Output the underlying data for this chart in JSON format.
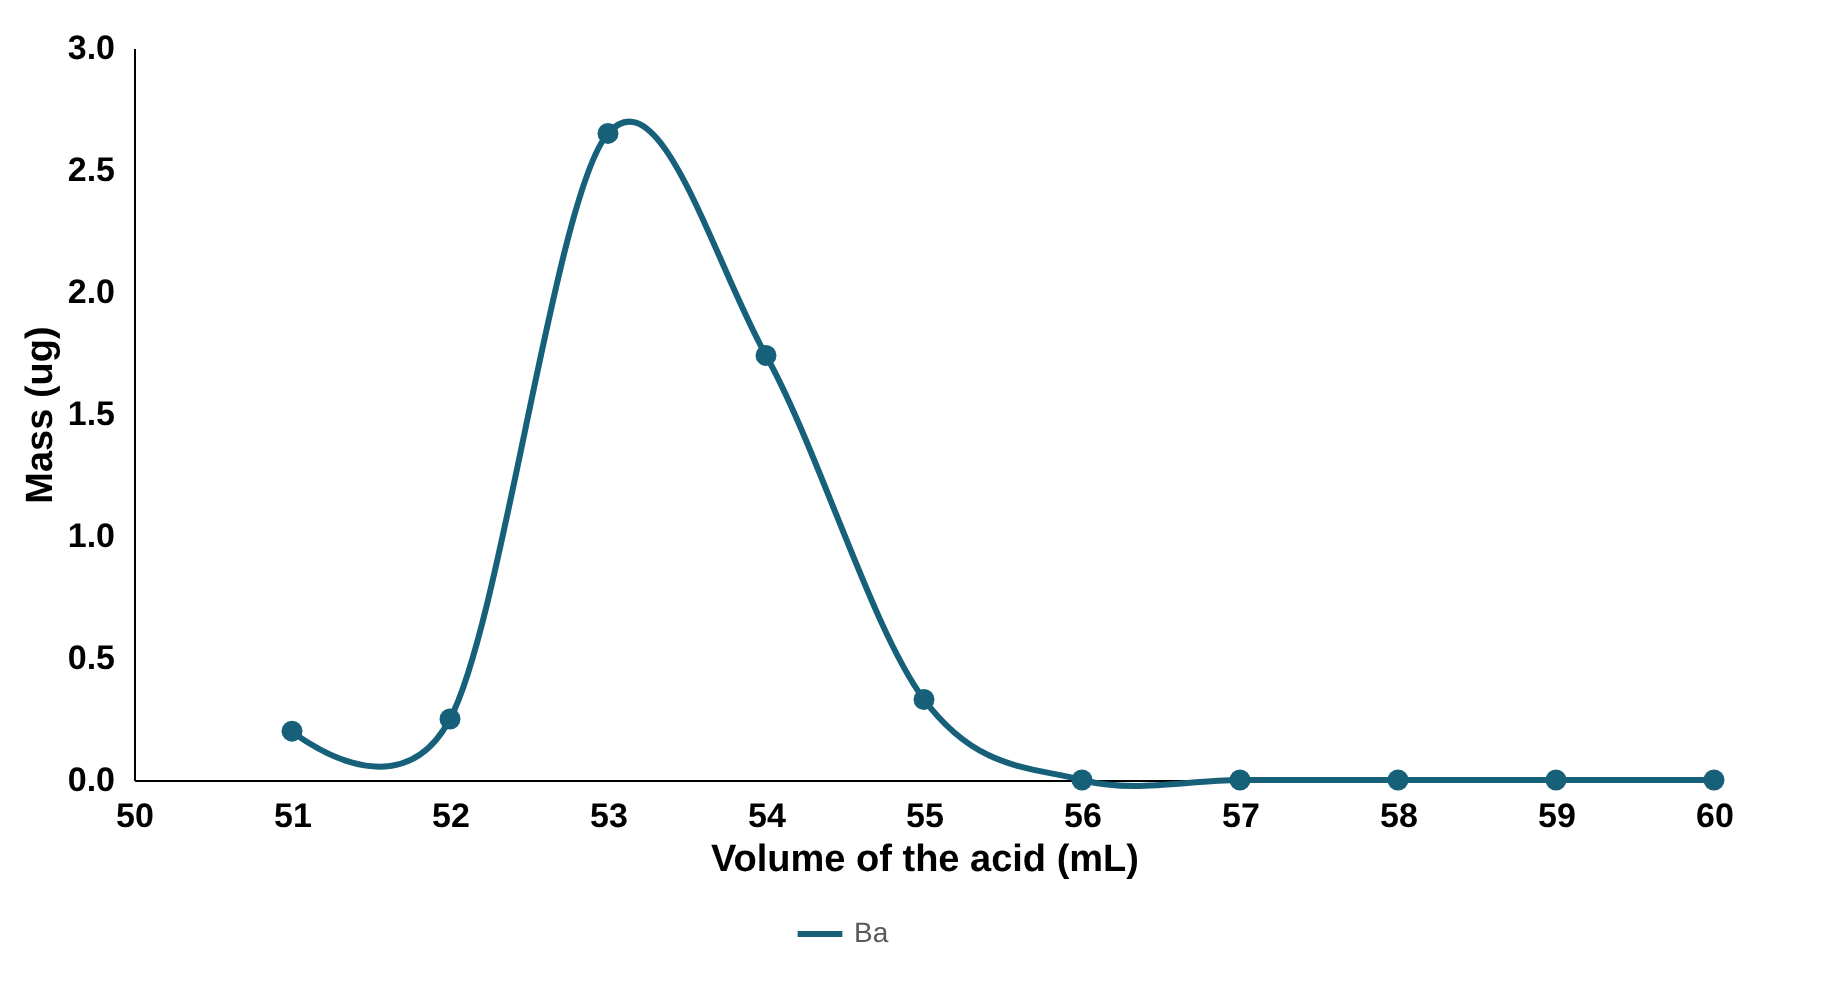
{
  "chart_data": {
    "type": "line",
    "xlabel": "Volume of the acid (mL)",
    "ylabel": "Mass (ug)",
    "x": [
      51,
      52,
      53,
      54,
      55,
      56,
      57,
      58,
      59,
      60
    ],
    "series": [
      {
        "name": "Ba",
        "color": "#17607a",
        "values": [
          0.2,
          0.25,
          2.65,
          1.74,
          0.33,
          0,
          0,
          0,
          0,
          0
        ]
      }
    ],
    "xlim": [
      50,
      60
    ],
    "xticks": [
      50,
      51,
      52,
      53,
      54,
      55,
      56,
      57,
      58,
      59,
      60
    ],
    "ylim": [
      0,
      3
    ],
    "yticks": [
      {
        "value": 0,
        "label": "0.0"
      },
      0.5,
      {
        "value": 1,
        "label": "1.0"
      },
      1.5,
      {
        "value": 2,
        "label": "2.0"
      },
      2.5,
      {
        "value": 3,
        "label": "3.0"
      }
    ],
    "grid": false,
    "legend": "bottom",
    "marker": "circle",
    "line_style": "solid"
  }
}
